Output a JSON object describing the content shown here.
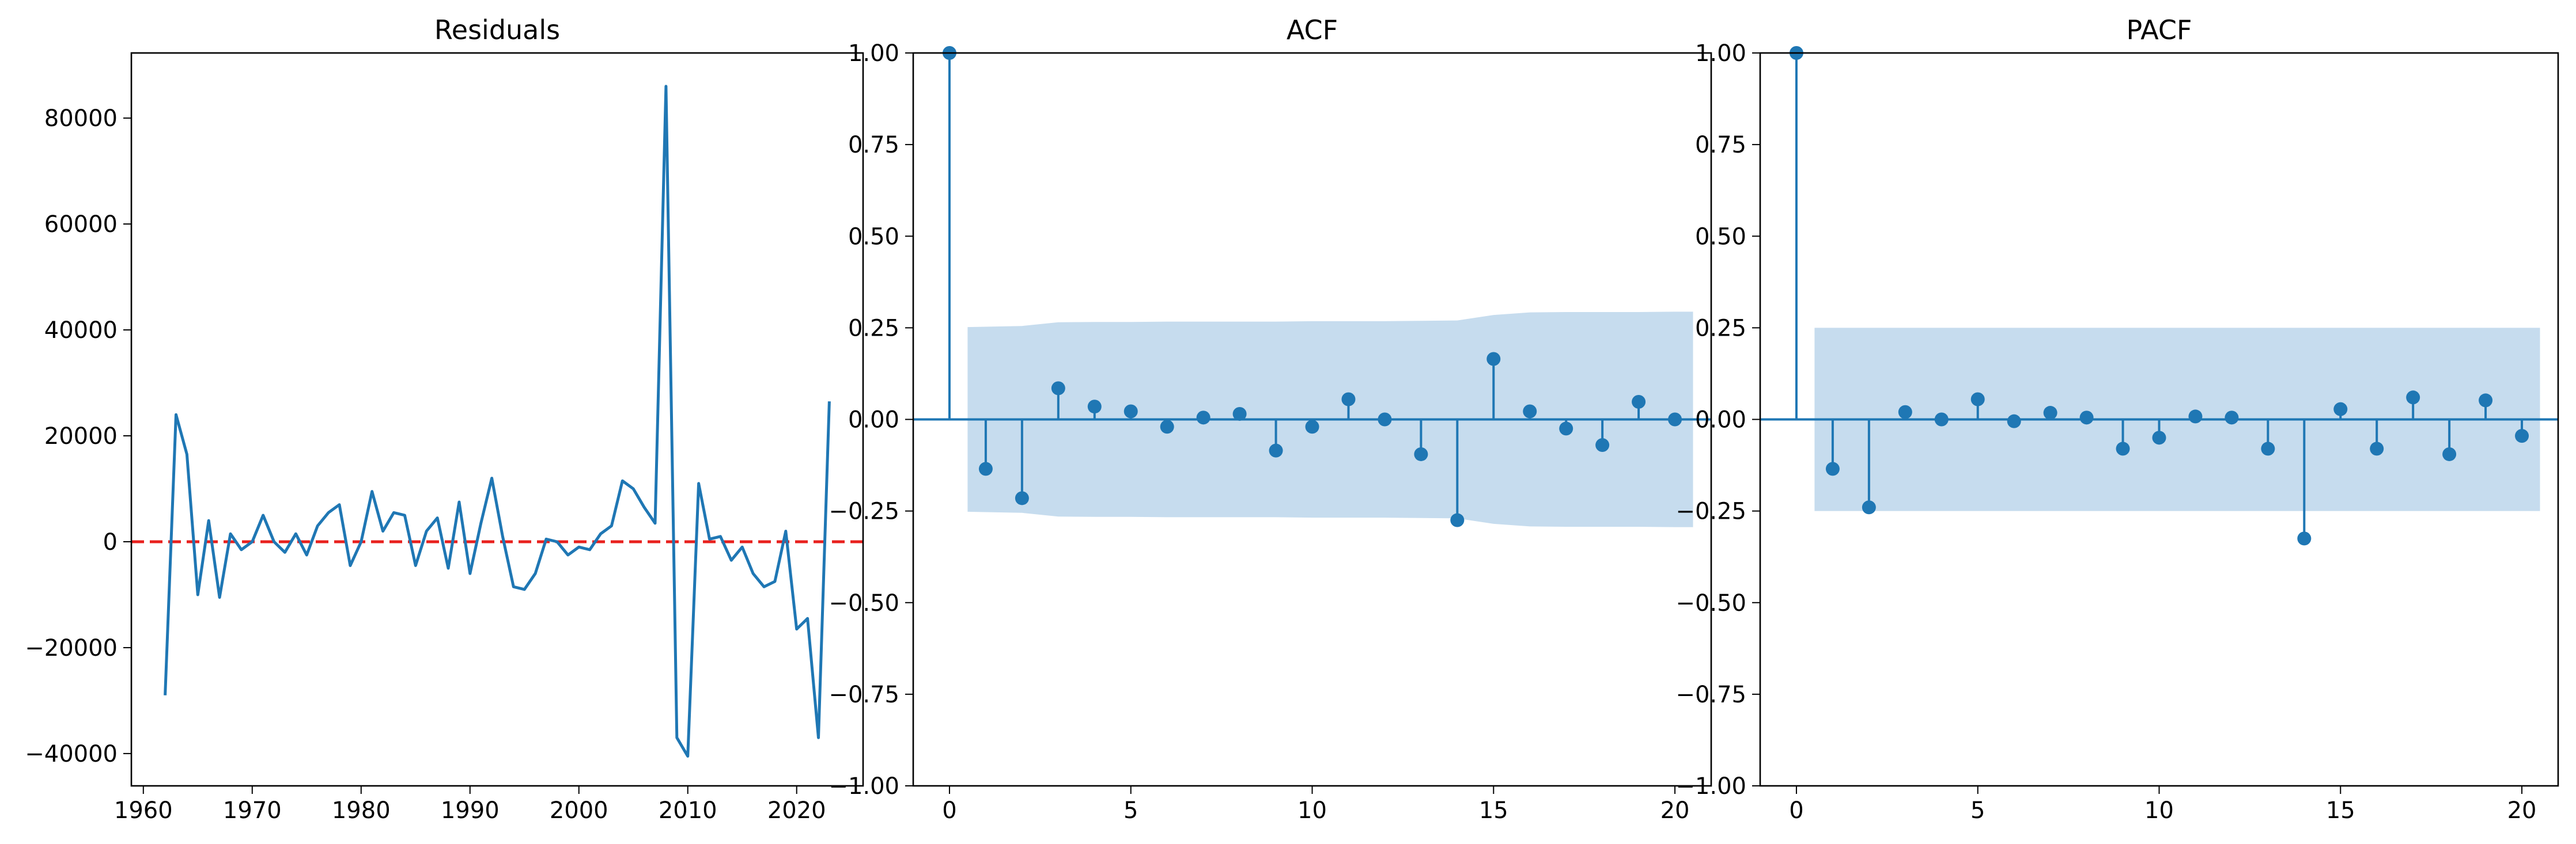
{
  "colors": {
    "line": "#1f77b4",
    "zero_line": "#e8211e",
    "confidence_band": "#c6dcee",
    "axis": "#000000"
  },
  "chart_data": [
    {
      "type": "line",
      "title": "Residuals",
      "xlabel": "",
      "ylabel": "",
      "xlim": [
        1958.9,
        2026.1
      ],
      "ylim": [
        -46100,
        92300
      ],
      "xticks": [
        1960,
        1970,
        1980,
        1990,
        2000,
        2010,
        2020
      ],
      "yticks": [
        -40000,
        -20000,
        0,
        20000,
        40000,
        60000,
        80000
      ],
      "grid": false,
      "reference_line": {
        "y": 0,
        "style": "dashed",
        "color": "#e8211e"
      },
      "x": [
        1962,
        1963,
        1964,
        1965,
        1966,
        1967,
        1968,
        1969,
        1970,
        1971,
        1972,
        1973,
        1974,
        1975,
        1976,
        1977,
        1978,
        1979,
        1980,
        1981,
        1982,
        1983,
        1984,
        1985,
        1986,
        1987,
        1988,
        1989,
        1990,
        1991,
        1992,
        1993,
        1994,
        1995,
        1996,
        1997,
        1998,
        1999,
        2000,
        2001,
        2002,
        2003,
        2004,
        2005,
        2006,
        2007,
        2008,
        2009,
        2010,
        2011,
        2012,
        2013,
        2014,
        2015,
        2016,
        2017,
        2018,
        2019,
        2020,
        2021,
        2022,
        2023
      ],
      "series": [
        {
          "values": [
            -29000,
            24000,
            16500,
            -10000,
            4000,
            -10500,
            1500,
            -1500,
            0,
            5000,
            0,
            -2000,
            1500,
            -2500,
            3000,
            5500,
            7000,
            -4500,
            0,
            9500,
            2000,
            5500,
            5000,
            -4500,
            2000,
            4500,
            -5000,
            7500,
            -6000,
            3500,
            12000,
            1000,
            -8500,
            -9000,
            -6000,
            500,
            0,
            -2500,
            -1000,
            -1500,
            1500,
            3000,
            11500,
            10000,
            6500,
            3500,
            86000,
            -37000,
            -40500,
            11000,
            500,
            1000,
            -3500,
            -1000,
            -6000,
            -8500,
            -7500,
            2000,
            -16500,
            -14500,
            -37000,
            26500
          ]
        }
      ]
    },
    {
      "type": "stem",
      "title": "ACF",
      "xlabel": "",
      "ylabel": "",
      "xlim": [
        -1,
        21
      ],
      "ylim": [
        -1,
        1
      ],
      "xticks": [
        0,
        5,
        10,
        15,
        20
      ],
      "yticks": [
        -1.0,
        -0.75,
        -0.5,
        -0.25,
        0.0,
        0.25,
        0.5,
        0.75,
        1.0
      ],
      "ytick_labels": [
        "−1.00",
        "−0.75",
        "−0.50",
        "−0.25",
        "0.00",
        "0.25",
        "0.50",
        "0.75",
        "1.00"
      ],
      "grid": false,
      "lags": [
        0,
        1,
        2,
        3,
        4,
        5,
        6,
        7,
        8,
        9,
        10,
        11,
        12,
        13,
        14,
        15,
        16,
        17,
        18,
        19,
        20
      ],
      "values": [
        1.0,
        -0.135,
        -0.215,
        0.085,
        0.035,
        0.022,
        -0.02,
        0.005,
        0.015,
        -0.085,
        -0.02,
        0.055,
        0.0,
        -0.095,
        -0.275,
        0.165,
        0.022,
        -0.025,
        -0.07,
        0.048,
        0.0
      ],
      "confidence_band": [
        0.25,
        0.252,
        0.255,
        0.265,
        0.266,
        0.266,
        0.267,
        0.267,
        0.267,
        0.267,
        0.268,
        0.268,
        0.268,
        0.269,
        0.27,
        0.285,
        0.292,
        0.293,
        0.293,
        0.293,
        0.294
      ]
    },
    {
      "type": "stem",
      "title": "PACF",
      "xlabel": "",
      "ylabel": "",
      "xlim": [
        -1,
        21
      ],
      "ylim": [
        -1,
        1
      ],
      "xticks": [
        0,
        5,
        10,
        15,
        20
      ],
      "yticks": [
        -1.0,
        -0.75,
        -0.5,
        -0.25,
        0.0,
        0.25,
        0.5,
        0.75,
        1.0
      ],
      "ytick_labels": [
        "−1.00",
        "−0.75",
        "−0.50",
        "−0.25",
        "0.00",
        "0.25",
        "0.50",
        "0.75",
        "1.00"
      ],
      "grid": false,
      "lags": [
        0,
        1,
        2,
        3,
        4,
        5,
        6,
        7,
        8,
        9,
        10,
        11,
        12,
        13,
        14,
        15,
        16,
        17,
        18,
        19,
        20
      ],
      "values": [
        1.0,
        -0.135,
        -0.24,
        0.02,
        0.0,
        0.055,
        -0.005,
        0.018,
        0.005,
        -0.08,
        -0.05,
        0.008,
        0.005,
        -0.08,
        -0.325,
        0.028,
        -0.08,
        0.06,
        -0.095,
        0.052,
        -0.045
      ],
      "confidence_band": [
        0.25,
        0.25,
        0.25,
        0.25,
        0.25,
        0.25,
        0.25,
        0.25,
        0.25,
        0.25,
        0.25,
        0.25,
        0.25,
        0.25,
        0.25,
        0.25,
        0.25,
        0.25,
        0.25,
        0.25,
        0.25
      ]
    }
  ]
}
